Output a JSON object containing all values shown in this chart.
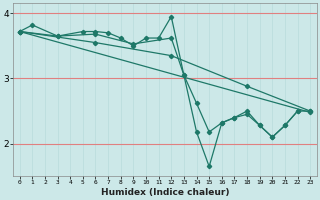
{
  "xlabel": "Humidex (Indice chaleur)",
  "bg_color": "#cce8e8",
  "line_color": "#1e7868",
  "grid_color_h": "#e08080",
  "grid_color_v": "#b8dcdc",
  "xlim": [
    -0.5,
    23.5
  ],
  "ylim": [
    1.5,
    4.15
  ],
  "yticks": [
    2,
    3,
    4
  ],
  "xticks": [
    0,
    1,
    2,
    3,
    4,
    5,
    6,
    7,
    8,
    9,
    10,
    11,
    12,
    13,
    14,
    15,
    16,
    17,
    18,
    19,
    20,
    21,
    22,
    23
  ],
  "series1": {
    "x": [
      0,
      1,
      3,
      5,
      6,
      7,
      8,
      9,
      10,
      11,
      12,
      13,
      14,
      15,
      16,
      17,
      18,
      19,
      20,
      21,
      22
    ],
    "y": [
      3.72,
      3.82,
      3.65,
      3.72,
      3.72,
      3.7,
      3.62,
      3.5,
      3.62,
      3.62,
      3.95,
      3.05,
      2.18,
      1.65,
      2.32,
      2.4,
      2.5,
      2.28,
      2.1,
      2.28,
      2.5
    ]
  },
  "series2": {
    "x": [
      0,
      3,
      6,
      9,
      12,
      13,
      14,
      15,
      16,
      17,
      18,
      19,
      20,
      21,
      22,
      23
    ],
    "y": [
      3.72,
      3.65,
      3.68,
      3.53,
      3.62,
      3.05,
      2.62,
      2.18,
      2.32,
      2.4,
      2.45,
      2.28,
      2.1,
      2.28,
      2.5,
      2.5
    ]
  },
  "series3": {
    "x": [
      0,
      6,
      12,
      18,
      23
    ],
    "y": [
      3.72,
      3.55,
      3.35,
      2.88,
      2.5
    ]
  },
  "series4": {
    "x": [
      0,
      23
    ],
    "y": [
      3.72,
      2.48
    ]
  }
}
